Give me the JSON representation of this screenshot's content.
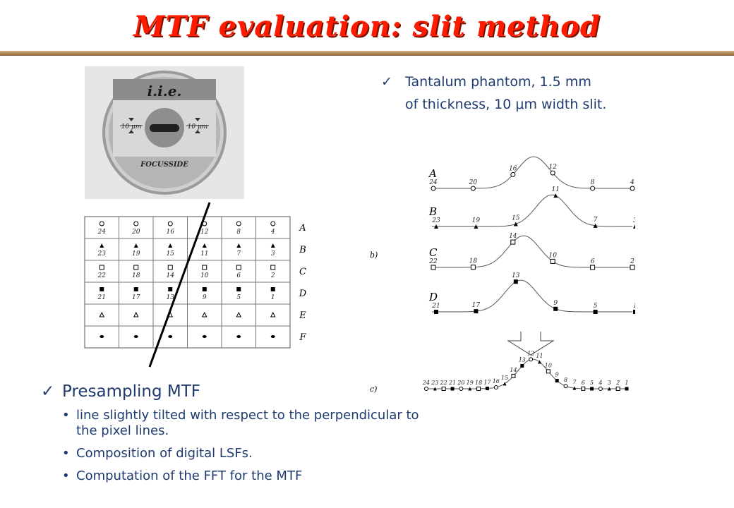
{
  "title": "MTF evaluation: slit method",
  "phantom": {
    "brand": "i.i.e.",
    "slit_left": "10 μm",
    "slit_right": "10 μm",
    "label": "FOCUSSIDE"
  },
  "note": {
    "check": "✓",
    "text": "Tantalum phantom, 1.5 mm of thickness, 10 μm width slit."
  },
  "grid": {
    "row_labels": [
      "A",
      "B",
      "C",
      "D",
      "E",
      "F"
    ],
    "rows": [
      [
        "24",
        "20",
        "16",
        "12",
        "8",
        "4"
      ],
      [
        "23",
        "19",
        "15",
        "11",
        "7",
        "3"
      ],
      [
        "22",
        "18",
        "14",
        "10",
        "6",
        "2"
      ],
      [
        "21",
        "17",
        "13",
        "9",
        "5",
        "1"
      ],
      [
        "",
        "",
        "",
        "",
        "",
        ""
      ],
      [
        "",
        "",
        "",
        "",
        "",
        ""
      ]
    ]
  },
  "curves": {
    "panel_b": "b)",
    "panel_c": "c)",
    "lsf": [
      {
        "label": "A",
        "points": [
          "24",
          "20",
          "16",
          "12",
          "8",
          "4"
        ]
      },
      {
        "label": "B",
        "points": [
          "23",
          "19",
          "15",
          "11",
          "7",
          "3"
        ]
      },
      {
        "label": "C",
        "points": [
          "22",
          "18",
          "14",
          "10",
          "6",
          "2"
        ]
      },
      {
        "label": "D",
        "points": [
          "21",
          "17",
          "13",
          "9",
          "5",
          "1"
        ]
      }
    ],
    "composite": [
      "24",
      "23",
      "22",
      "21",
      "20",
      "19",
      "18",
      "17",
      "16",
      "15",
      "14",
      "13",
      "12",
      "11",
      "10",
      "9",
      "8",
      "7",
      "6",
      "5",
      "4",
      "3",
      "2",
      "1"
    ]
  },
  "section": {
    "check": "✓",
    "heading": "Presampling MTF",
    "bullets": [
      "line slightly tilted with respect to the perpendicular to the pixel lines.",
      "Composition of digital LSFs.",
      "Computation of the FFT for the MTF"
    ]
  }
}
